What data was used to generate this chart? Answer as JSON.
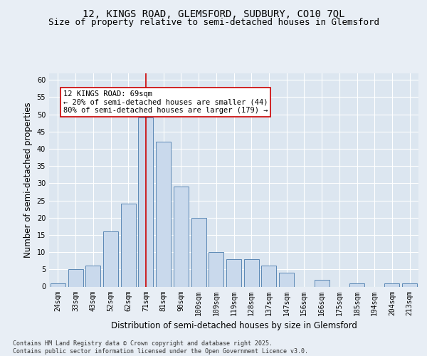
{
  "title_line1": "12, KINGS ROAD, GLEMSFORD, SUDBURY, CO10 7QL",
  "title_line2": "Size of property relative to semi-detached houses in Glemsford",
  "xlabel": "Distribution of semi-detached houses by size in Glemsford",
  "ylabel": "Number of semi-detached properties",
  "categories": [
    "24sqm",
    "33sqm",
    "43sqm",
    "52sqm",
    "62sqm",
    "71sqm",
    "81sqm",
    "90sqm",
    "100sqm",
    "109sqm",
    "119sqm",
    "128sqm",
    "137sqm",
    "147sqm",
    "156sqm",
    "166sqm",
    "175sqm",
    "185sqm",
    "194sqm",
    "204sqm",
    "213sqm"
  ],
  "values": [
    1,
    5,
    6,
    16,
    24,
    49,
    42,
    29,
    20,
    10,
    8,
    8,
    6,
    4,
    0,
    2,
    0,
    1,
    0,
    1,
    1
  ],
  "bar_color": "#c9d9ec",
  "bar_edge_color": "#5b88b5",
  "vline_x_index": 5,
  "vline_color": "#cc0000",
  "annotation_title": "12 KINGS ROAD: 69sqm",
  "annotation_line1": "← 20% of semi-detached houses are smaller (44)",
  "annotation_line2": "80% of semi-detached houses are larger (179) →",
  "annotation_box_color": "#ffffff",
  "annotation_box_edge": "#cc0000",
  "ylim": [
    0,
    62
  ],
  "yticks": [
    0,
    5,
    10,
    15,
    20,
    25,
    30,
    35,
    40,
    45,
    50,
    55,
    60
  ],
  "background_color": "#e8eef5",
  "plot_background": "#dce6f0",
  "footer": "Contains HM Land Registry data © Crown copyright and database right 2025.\nContains public sector information licensed under the Open Government Licence v3.0.",
  "title_fontsize": 10,
  "subtitle_fontsize": 9,
  "tick_fontsize": 7,
  "label_fontsize": 8.5,
  "annotation_fontsize": 7.5,
  "footer_fontsize": 6
}
